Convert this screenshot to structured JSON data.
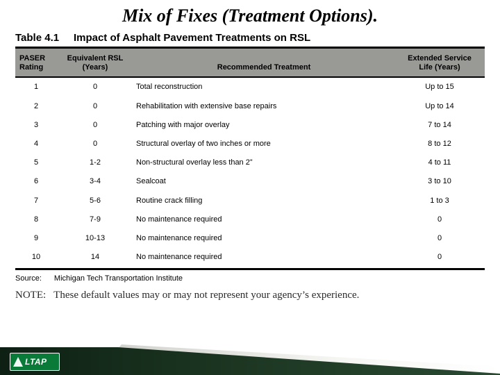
{
  "title": "Mix of Fixes (Treatment Options).",
  "table": {
    "caption_prefix": "Table 4.1",
    "caption_text": "Impact of Asphalt Pavement Treatments on RSL",
    "columns": {
      "paser": "PASER\nRating",
      "rsl": "Equivalent RSL\n(Years)",
      "treatment": "Recommended Treatment",
      "extended": "Extended Service\nLife (Years)"
    },
    "rows": [
      {
        "paser": "1",
        "rsl": "0",
        "treatment": "Total reconstruction",
        "extended": "Up to 15"
      },
      {
        "paser": "2",
        "rsl": "0",
        "treatment": "Rehabilitation with extensive base repairs",
        "extended": "Up to 14"
      },
      {
        "paser": "3",
        "rsl": "0",
        "treatment": "Patching with major overlay",
        "extended": "7 to 14"
      },
      {
        "paser": "4",
        "rsl": "0",
        "treatment": "Structural overlay of two inches or more",
        "extended": "8  to 12"
      },
      {
        "paser": "5",
        "rsl": "1-2",
        "treatment": "Non-structural overlay less than 2”",
        "extended": "4 to 11"
      },
      {
        "paser": "6",
        "rsl": "3-4",
        "treatment": "Sealcoat",
        "extended": "3 to 10"
      },
      {
        "paser": "7",
        "rsl": "5-6",
        "treatment": "Routine crack filling",
        "extended": "1 to 3"
      },
      {
        "paser": "8",
        "rsl": "7-9",
        "treatment": "No maintenance required",
        "extended": "0"
      },
      {
        "paser": "9",
        "rsl": "10-13",
        "treatment": "No maintenance required",
        "extended": "0"
      },
      {
        "paser": "10",
        "rsl": "14",
        "treatment": "No maintenance required",
        "extended": "0"
      }
    ]
  },
  "source": {
    "label": "Source:",
    "value": "Michigan Tech Transportation Institute"
  },
  "note": {
    "label": "NOTE:",
    "value": "These default values may or may not represent your agency’s experience."
  },
  "logo": {
    "text": "LTAP"
  },
  "colors": {
    "header_bg": "#999996",
    "rule": "#000000",
    "footer_dark_start": "#0e2014",
    "footer_dark_end": "#2a4a32",
    "badge_bg": "#0a7a39"
  }
}
